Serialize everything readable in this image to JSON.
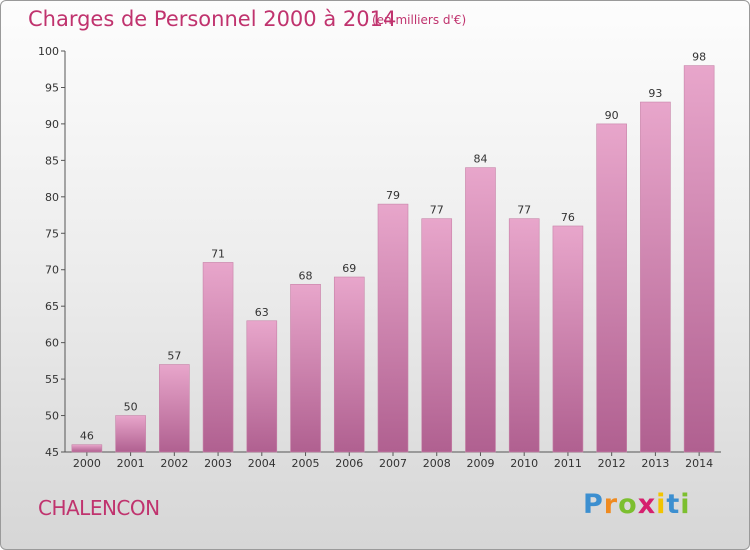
{
  "title": "Charges de Personnel 2000 à 2014",
  "unit_note": "(en milliers d'€)",
  "commune": "CHALENCON",
  "logo": {
    "letters": [
      "P",
      "r",
      "o",
      "x",
      "i",
      "t",
      "i"
    ],
    "colors": [
      "#3c8fd0",
      "#ef8a1f",
      "#7cbf2f",
      "#d6206e",
      "#f2c400",
      "#3c8fd0",
      "#7cbf2f"
    ]
  },
  "colors": {
    "title": "#c0336e",
    "bar_top": "#e8a6cb",
    "bar_bottom": "#b06090"
  },
  "chart_data": {
    "type": "bar",
    "title": "Charges de Personnel 2000 à 2014",
    "subtitle": "(en milliers d'€)",
    "categories": [
      "2000",
      "2001",
      "2002",
      "2003",
      "2004",
      "2005",
      "2006",
      "2007",
      "2008",
      "2009",
      "2010",
      "2011",
      "2012",
      "2013",
      "2014"
    ],
    "values": [
      46,
      50,
      57,
      71,
      63,
      68,
      69,
      79,
      77,
      84,
      77,
      76,
      90,
      93,
      98
    ],
    "ylim": [
      45,
      100
    ],
    "yticks": [
      45,
      50,
      55,
      60,
      65,
      70,
      75,
      80,
      85,
      90,
      95,
      100
    ],
    "grid": false,
    "xlabel": "",
    "ylabel": ""
  }
}
